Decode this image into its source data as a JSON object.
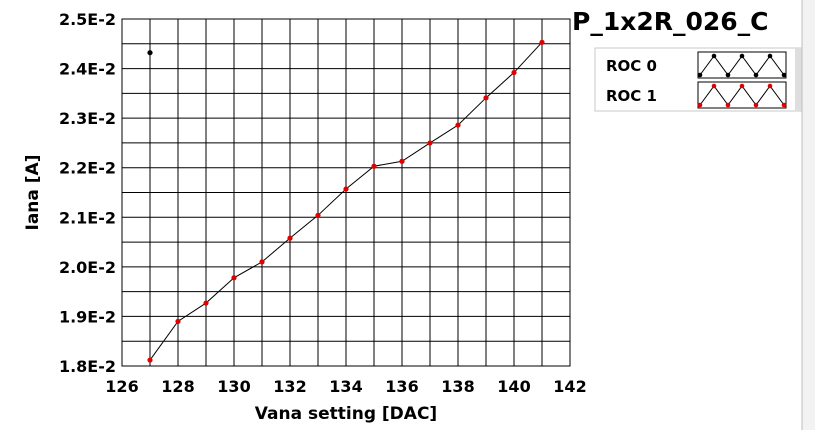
{
  "chart_data": {
    "type": "scatter",
    "title": "P_1x2R_026_C",
    "xlabel": "Vana setting [DAC]",
    "ylabel": "Iana [A]",
    "xlim": [
      126,
      142
    ],
    "ylim": [
      0.018,
      0.025
    ],
    "x_ticks": [
      126,
      128,
      130,
      132,
      134,
      136,
      138,
      140,
      142
    ],
    "x_tick_labels": [
      "126",
      "128",
      "130",
      "132",
      "134",
      "136",
      "138",
      "140",
      "142"
    ],
    "y_ticks": [
      0.018,
      0.019,
      0.02,
      0.021,
      0.022,
      0.023,
      0.024,
      0.025
    ],
    "y_tick_labels": [
      "1.8E-2",
      "1.9E-2",
      "2.0E-2",
      "2.1E-2",
      "2.2E-2",
      "2.3E-2",
      "2.4E-2",
      "2.5E-2"
    ],
    "grid": true,
    "legend_position": "top-right",
    "series": [
      {
        "name": "ROC 0",
        "color": "#000000",
        "points": [
          {
            "x": 127,
            "y": 0.02432
          }
        ]
      },
      {
        "name": "ROC 1",
        "color": "#e00000",
        "points": [
          {
            "x": 127,
            "y": 0.01812
          },
          {
            "x": 128,
            "y": 0.0189
          },
          {
            "x": 129,
            "y": 0.01927
          },
          {
            "x": 130,
            "y": 0.01978
          },
          {
            "x": 131,
            "y": 0.0201
          },
          {
            "x": 132,
            "y": 0.02058
          },
          {
            "x": 133,
            "y": 0.02104
          },
          {
            "x": 134,
            "y": 0.02157
          },
          {
            "x": 135,
            "y": 0.02203
          },
          {
            "x": 136,
            "y": 0.02213
          },
          {
            "x": 137,
            "y": 0.0225
          },
          {
            "x": 138,
            "y": 0.02286
          },
          {
            "x": 139,
            "y": 0.02341
          },
          {
            "x": 140,
            "y": 0.02392
          },
          {
            "x": 141,
            "y": 0.02453
          }
        ]
      }
    ]
  }
}
